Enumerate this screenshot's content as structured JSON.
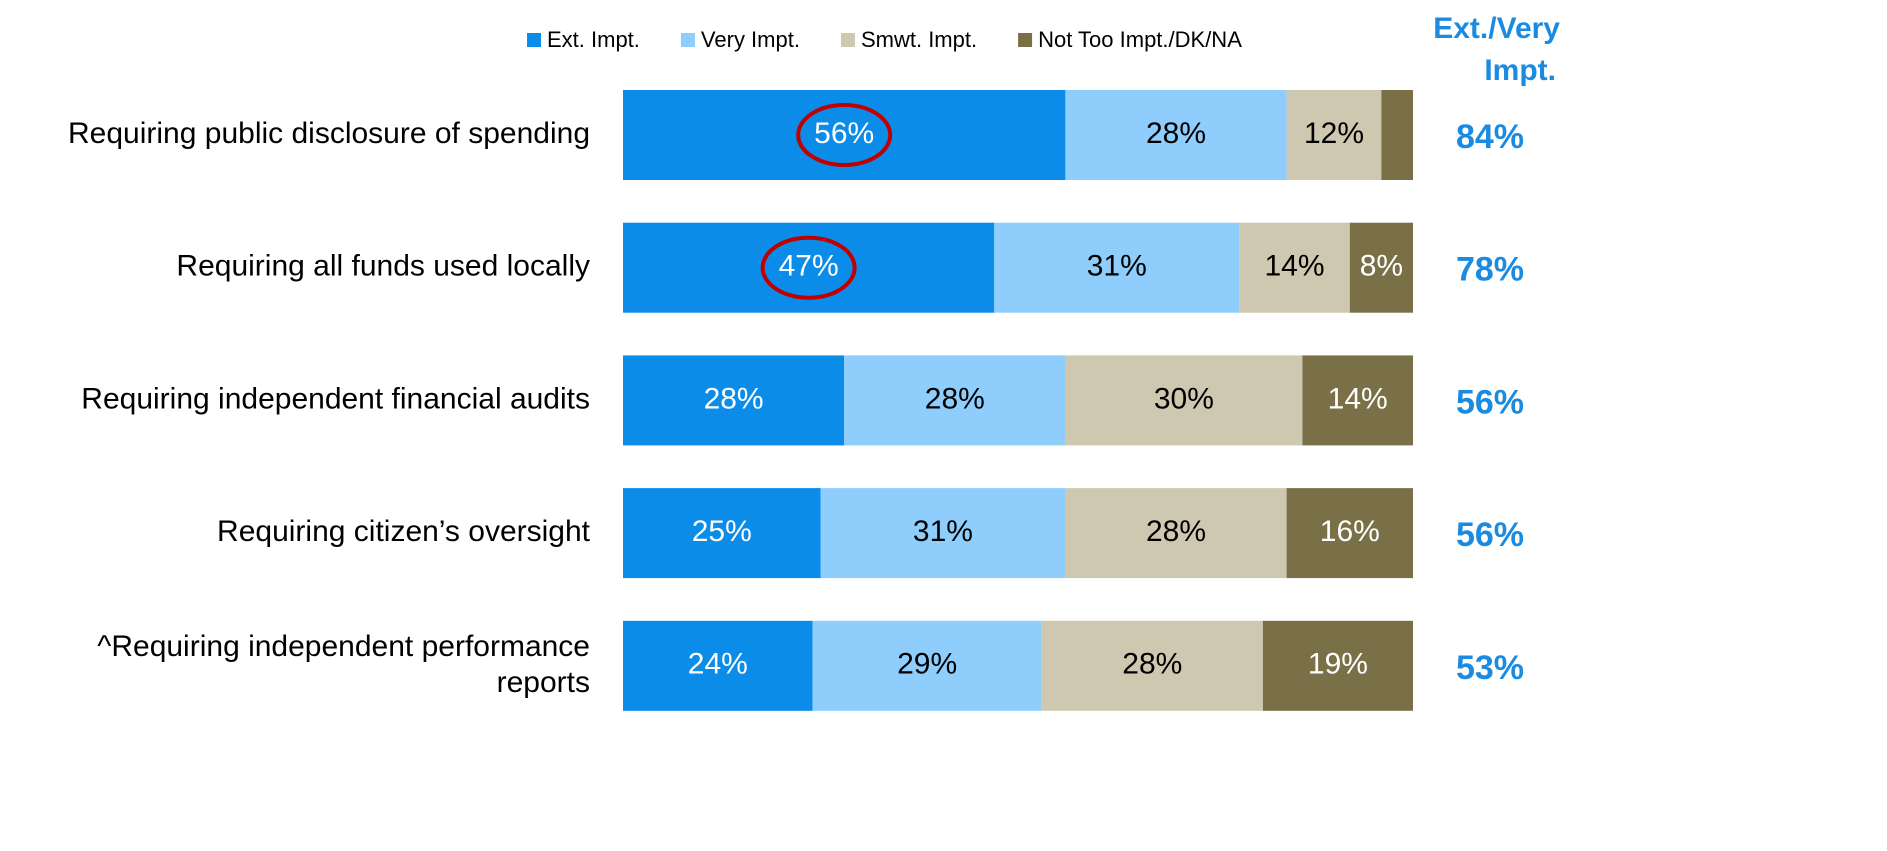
{
  "chart_data": {
    "type": "stacked_bar_horizontal",
    "categories": [
      "Requiring public disclosure of spending",
      "Requiring all funds used locally",
      "Requiring independent financial audits",
      "Requiring citizen’s oversight",
      "^Requiring independent performance reports"
    ],
    "series": [
      {
        "name": "Ext. Impt.",
        "color": "#0b8ce9",
        "label_color": "#ffffff",
        "values": [
          56,
          47,
          28,
          25,
          24
        ],
        "value_labels": [
          "56%",
          "47%",
          "28%",
          "25%",
          "24%"
        ]
      },
      {
        "name": "Very Impt.",
        "color": "#8fcdfd",
        "label_color": "#000000",
        "values": [
          28,
          31,
          28,
          31,
          29
        ],
        "value_labels": [
          "28%",
          "31%",
          "28%",
          "31%",
          "29%"
        ]
      },
      {
        "name": "Smwt. Impt.",
        "color": "#cfc8b0",
        "label_color": "#000000",
        "values": [
          12,
          14,
          30,
          28,
          28
        ],
        "value_labels": [
          "12%",
          "14%",
          "30%",
          "28%",
          "28%"
        ]
      },
      {
        "name": "Not Too Impt./DK/NA",
        "color": "#7a7048",
        "label_color": "#ffffff",
        "values": [
          4,
          8,
          14,
          16,
          19
        ],
        "value_labels": [
          null,
          "8%",
          "14%",
          "16%",
          "19%"
        ]
      }
    ],
    "xlim": [
      0,
      100
    ],
    "net_header": [
      "Ext./Very",
      "Impt."
    ],
    "net_color": "#1a8be0",
    "net_values": [
      84,
      78,
      56,
      56,
      53
    ],
    "net_labels": [
      "84%",
      "78%",
      "56%",
      "56%",
      "53%"
    ],
    "highlight": {
      "series": 0,
      "indices": [
        0,
        1
      ],
      "color": "#c00000"
    },
    "legend": "top"
  }
}
